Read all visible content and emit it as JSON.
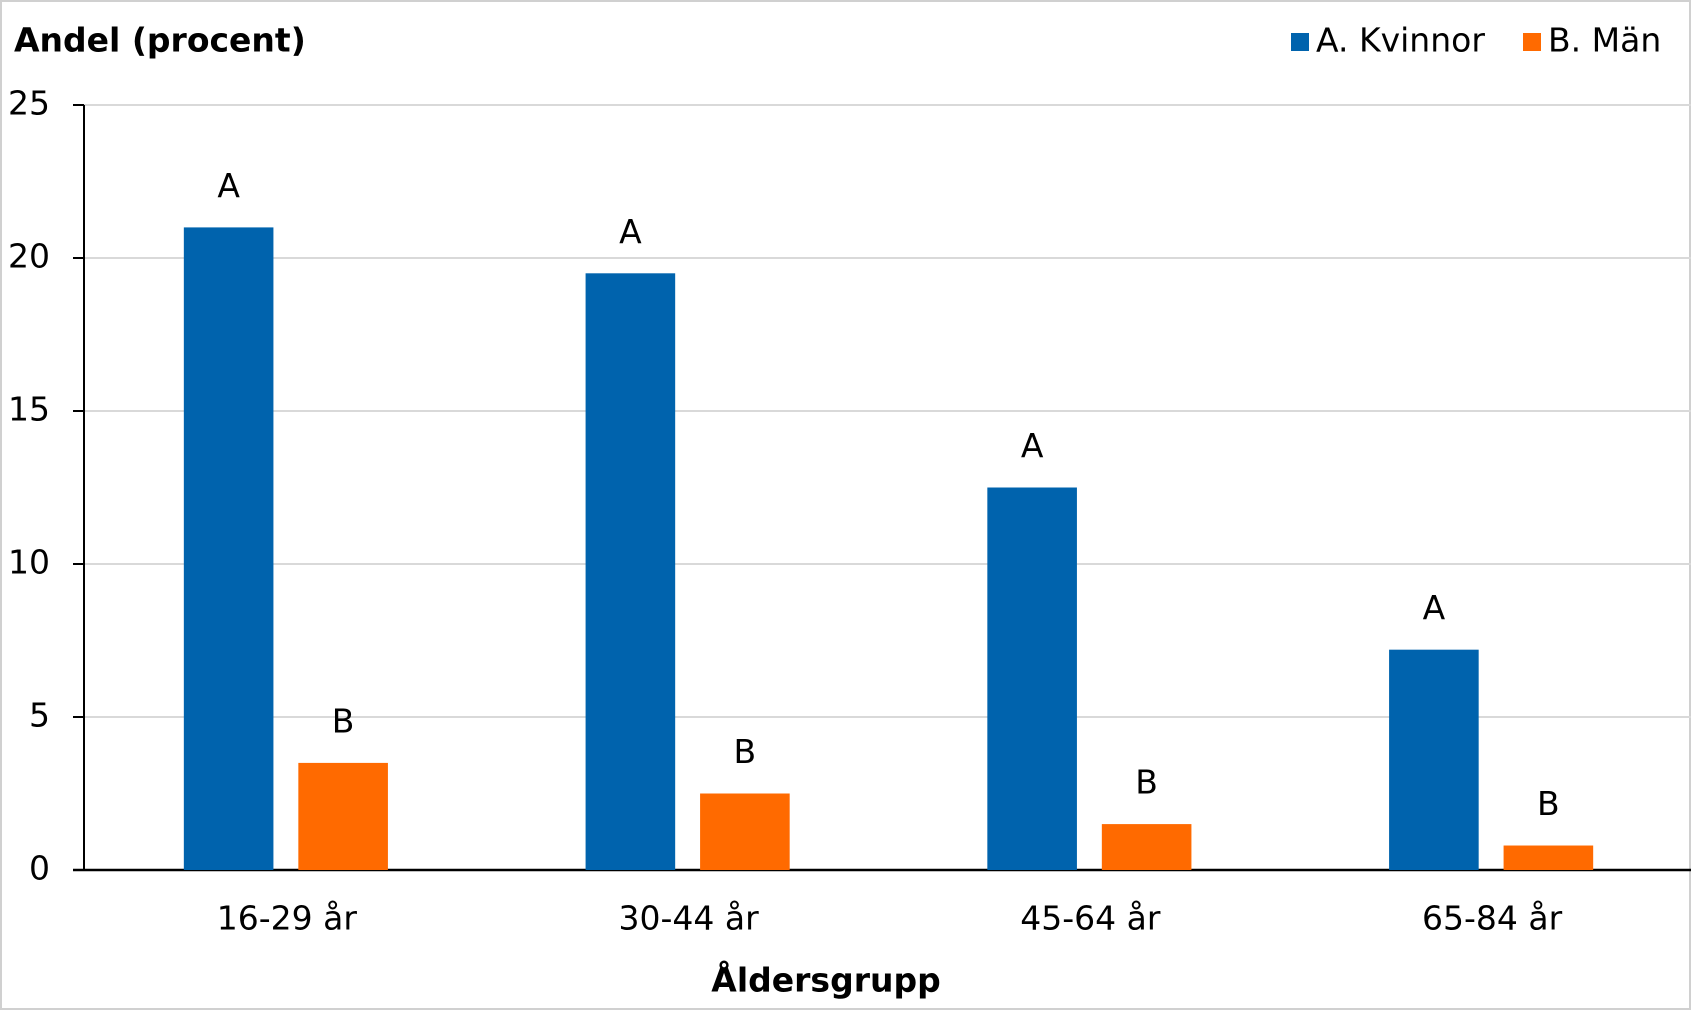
{
  "chart_data": {
    "type": "bar",
    "y_label": "Andel (procent)",
    "x_label": "Åldersgrupp",
    "categories": [
      "16-29 år",
      "30-44 år",
      "45-64 år",
      "65-84 år"
    ],
    "series": [
      {
        "name": "A. Kvinnor",
        "color": "#0063ad",
        "values": [
          21,
          19.5,
          12.5,
          7.2
        ],
        "bar_labels": [
          "A",
          "A",
          "A",
          "A"
        ]
      },
      {
        "name": "B. Män",
        "color": "#ff6a00",
        "values": [
          3.5,
          2.5,
          1.5,
          0.8
        ],
        "bar_labels": [
          "B",
          "B",
          "B",
          "B"
        ]
      }
    ],
    "ylim": [
      0,
      25
    ],
    "yticks": [
      0,
      5,
      10,
      15,
      20,
      25
    ],
    "grid": true,
    "legend": "top-right"
  }
}
